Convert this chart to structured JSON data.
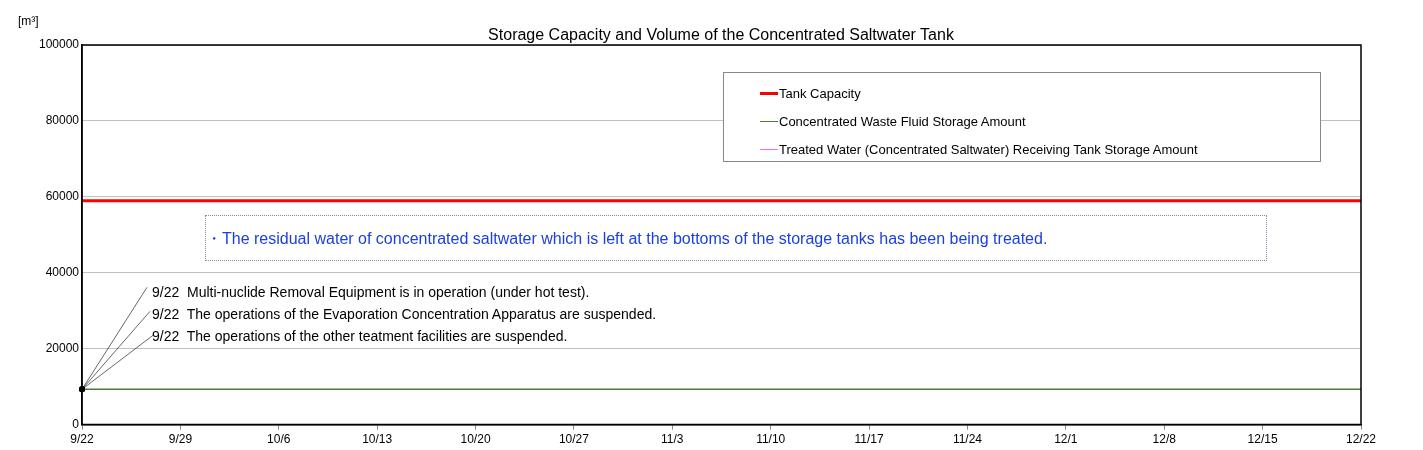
{
  "chart_data": {
    "type": "line",
    "title": "Storage Capacity and Volume of the Concentrated Saltwater Tank",
    "ylabel": "[m³]",
    "xlim": [
      "--09-22",
      "--12-22"
    ],
    "xticks": [
      {
        "value": "--09-22",
        "label": "9/22"
      },
      {
        "value": "--09-29",
        "label": "9/29"
      },
      {
        "value": "--10-06",
        "label": "10/6"
      },
      {
        "value": "--10-13",
        "label": "10/13"
      },
      {
        "value": "--10-20",
        "label": "10/20"
      },
      {
        "value": "--10-27",
        "label": "10/27"
      },
      {
        "value": "--11-03",
        "label": "11/3"
      },
      {
        "value": "--11-10",
        "label": "11/10"
      },
      {
        "value": "--11-17",
        "label": "11/17"
      },
      {
        "value": "--11-24",
        "label": "11/24"
      },
      {
        "value": "--12-01",
        "label": "12/1"
      },
      {
        "value": "--12-08",
        "label": "12/8"
      },
      {
        "value": "--12-15",
        "label": "12/15"
      },
      {
        "value": "--12-22",
        "label": "12/22"
      }
    ],
    "ylim": [
      0,
      100000
    ],
    "yticks": [
      0,
      20000,
      40000,
      60000,
      80000,
      100000
    ],
    "grid": "y",
    "legend": "top right",
    "x": [
      "--09-22",
      "--12-22"
    ],
    "series": [
      {
        "name": "Tank Capacity",
        "color": "#ff0000",
        "values": [
          59000,
          59000
        ]
      },
      {
        "name": "Concentrated Waste Fluid Storage Amount",
        "color": "#4f7a3a",
        "values": [
          9300,
          9300
        ]
      },
      {
        "name": "Treated Water (Concentrated Saltwater) Receiving Tank Storage Amount",
        "color": "#ff66ff",
        "values": [
          null,
          null
        ]
      }
    ],
    "annotations": [
      "・The residual water of concentrated saltwater which is left at the bottoms of the storage tanks has been being treated.",
      {
        "text": "9/22  Multi-nuclide Removal Equipment is in operation (under hot test).",
        "x": "--09-22",
        "y": 9300
      },
      {
        "text": "9/22  The operations of the Evaporation Concentration Apparatus are suspended.",
        "x": "--09-22",
        "y": 9300
      },
      {
        "text": "9/22  The operations of the other teatment facilities are suspended.",
        "x": "--09-22",
        "y": 9300
      }
    ]
  }
}
